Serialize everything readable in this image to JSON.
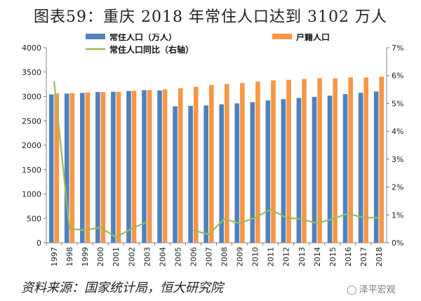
{
  "title": "图表59：重庆 2018 年常住人口达到 3102 万人",
  "source": "资料来源：国家统计局，恒大研究院",
  "watermark": {
    "text": "泽平宏观",
    "icon": "wechat-icon"
  },
  "colors": {
    "resident_bar": "#4f81bd",
    "hukou_bar": "#f79646",
    "yoy_line": "#9bbb59",
    "axis": "#808080"
  },
  "chart_data": {
    "type": "bar",
    "categories": [
      "1997",
      "1998",
      "1999",
      "2000",
      "2001",
      "2002",
      "2003",
      "2004",
      "2005",
      "2006",
      "2007",
      "2008",
      "2009",
      "2010",
      "2011",
      "2012",
      "2013",
      "2014",
      "2015",
      "2016",
      "2017",
      "2018"
    ],
    "series": [
      {
        "name": "常住人口（万人）",
        "type": "bar",
        "axis": "left",
        "values": [
          3042,
          3060,
          3072,
          3091,
          3097,
          3113,
          3130,
          3122,
          2798,
          2808,
          2816,
          2839,
          2859,
          2885,
          2919,
          2945,
          2970,
          2991,
          3017,
          3048,
          3075,
          3102
        ]
      },
      {
        "name": "户籍人口",
        "type": "bar",
        "axis": "left",
        "values": [
          3060,
          3068,
          3082,
          3092,
          3097,
          3114,
          3130,
          3144,
          3169,
          3199,
          3235,
          3257,
          3276,
          3303,
          3330,
          3343,
          3358,
          3375,
          3372,
          3392,
          3390,
          3404
        ]
      },
      {
        "name": "常住人口同比（右轴）",
        "type": "line",
        "axis": "right",
        "values": [
          5.8,
          0.5,
          0.45,
          0.55,
          0.2,
          0.5,
          0.75,
          null,
          null,
          0.45,
          0.3,
          0.85,
          0.7,
          0.9,
          1.2,
          0.9,
          0.85,
          0.7,
          0.85,
          1.05,
          0.9,
          0.9
        ]
      }
    ],
    "yleft": {
      "min": 0,
      "max": 4000,
      "ticks": [
        "0",
        "500",
        "1000",
        "1500",
        "2000",
        "2500",
        "3000",
        "3500",
        "4000"
      ]
    },
    "yright": {
      "min": 0,
      "max": 7,
      "ticks": [
        "0%",
        "1%",
        "2%",
        "3%",
        "4%",
        "5%",
        "6%",
        "7%"
      ]
    },
    "xlabel": "",
    "ylabel": "",
    "legend_position": "top",
    "grid": false
  }
}
